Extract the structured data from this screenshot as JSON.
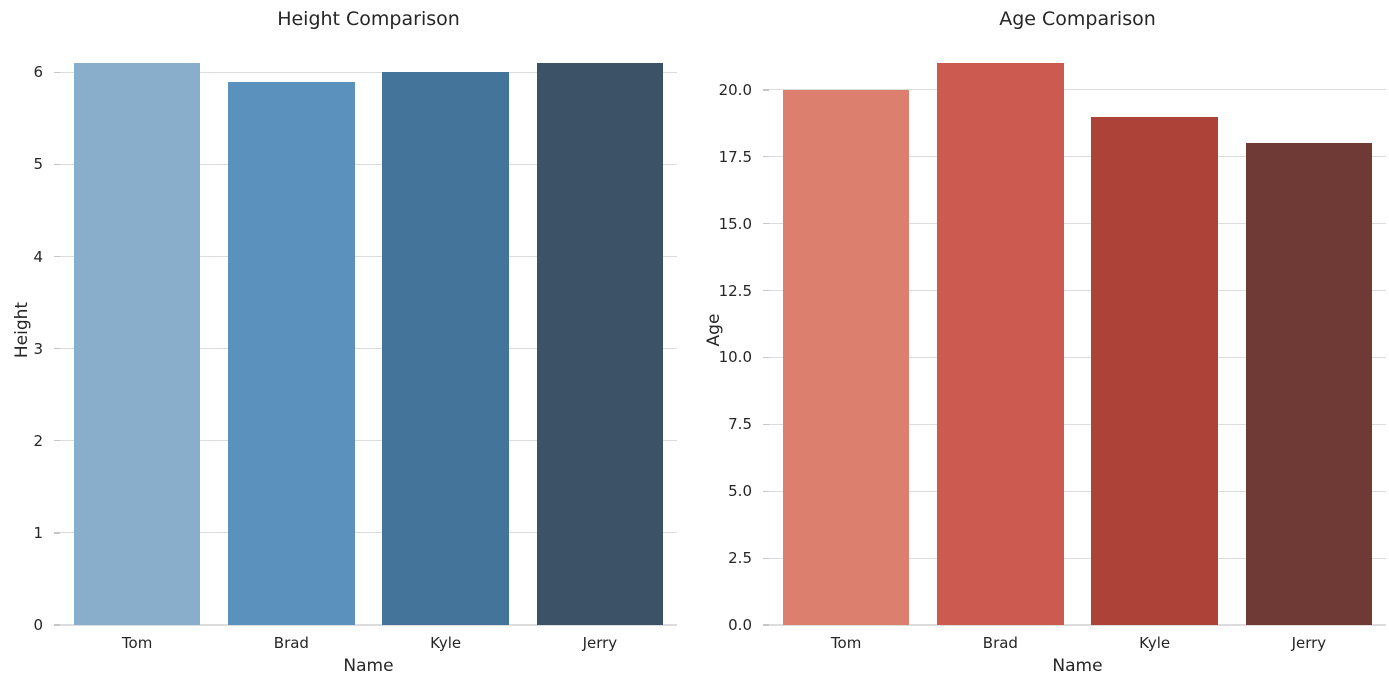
{
  "figure": {
    "background": "#ffffff",
    "text_color": "#262626",
    "grid_color": "#dcdcdc",
    "tick_color": "#c6c6c6"
  },
  "chart_data": [
    {
      "type": "bar",
      "title": "Height Comparison",
      "xlabel": "Name",
      "ylabel": "Height",
      "categories": [
        "Tom",
        "Brad",
        "Kyle",
        "Jerry"
      ],
      "values": [
        6.1,
        5.9,
        6.0,
        6.1
      ],
      "yticks": [
        0,
        1,
        2,
        3,
        4,
        5,
        6
      ],
      "ytick_labels": [
        "0",
        "1",
        "2",
        "3",
        "4",
        "5",
        "6"
      ],
      "ylim": [
        0,
        6.405
      ],
      "bar_colors": [
        "#89AECB",
        "#5B92BD",
        "#45749B",
        "#3C5266"
      ],
      "grid": true,
      "legend": "none"
    },
    {
      "type": "bar",
      "title": "Age Comparison",
      "xlabel": "Name",
      "ylabel": "Age",
      "categories": [
        "Tom",
        "Brad",
        "Kyle",
        "Jerry"
      ],
      "values": [
        20,
        21,
        19,
        18
      ],
      "yticks": [
        0,
        2.5,
        5,
        7.5,
        10,
        12.5,
        15,
        17.5,
        20
      ],
      "ytick_labels": [
        "0.0",
        "2.5",
        "5.0",
        "7.5",
        "10.0",
        "12.5",
        "15.0",
        "17.5",
        "20.0"
      ],
      "ylim": [
        0,
        22.05
      ],
      "bar_colors": [
        "#DC7F6E",
        "#CD5A50",
        "#AC4238",
        "#6F3A36"
      ],
      "grid": true,
      "legend": "none"
    }
  ]
}
